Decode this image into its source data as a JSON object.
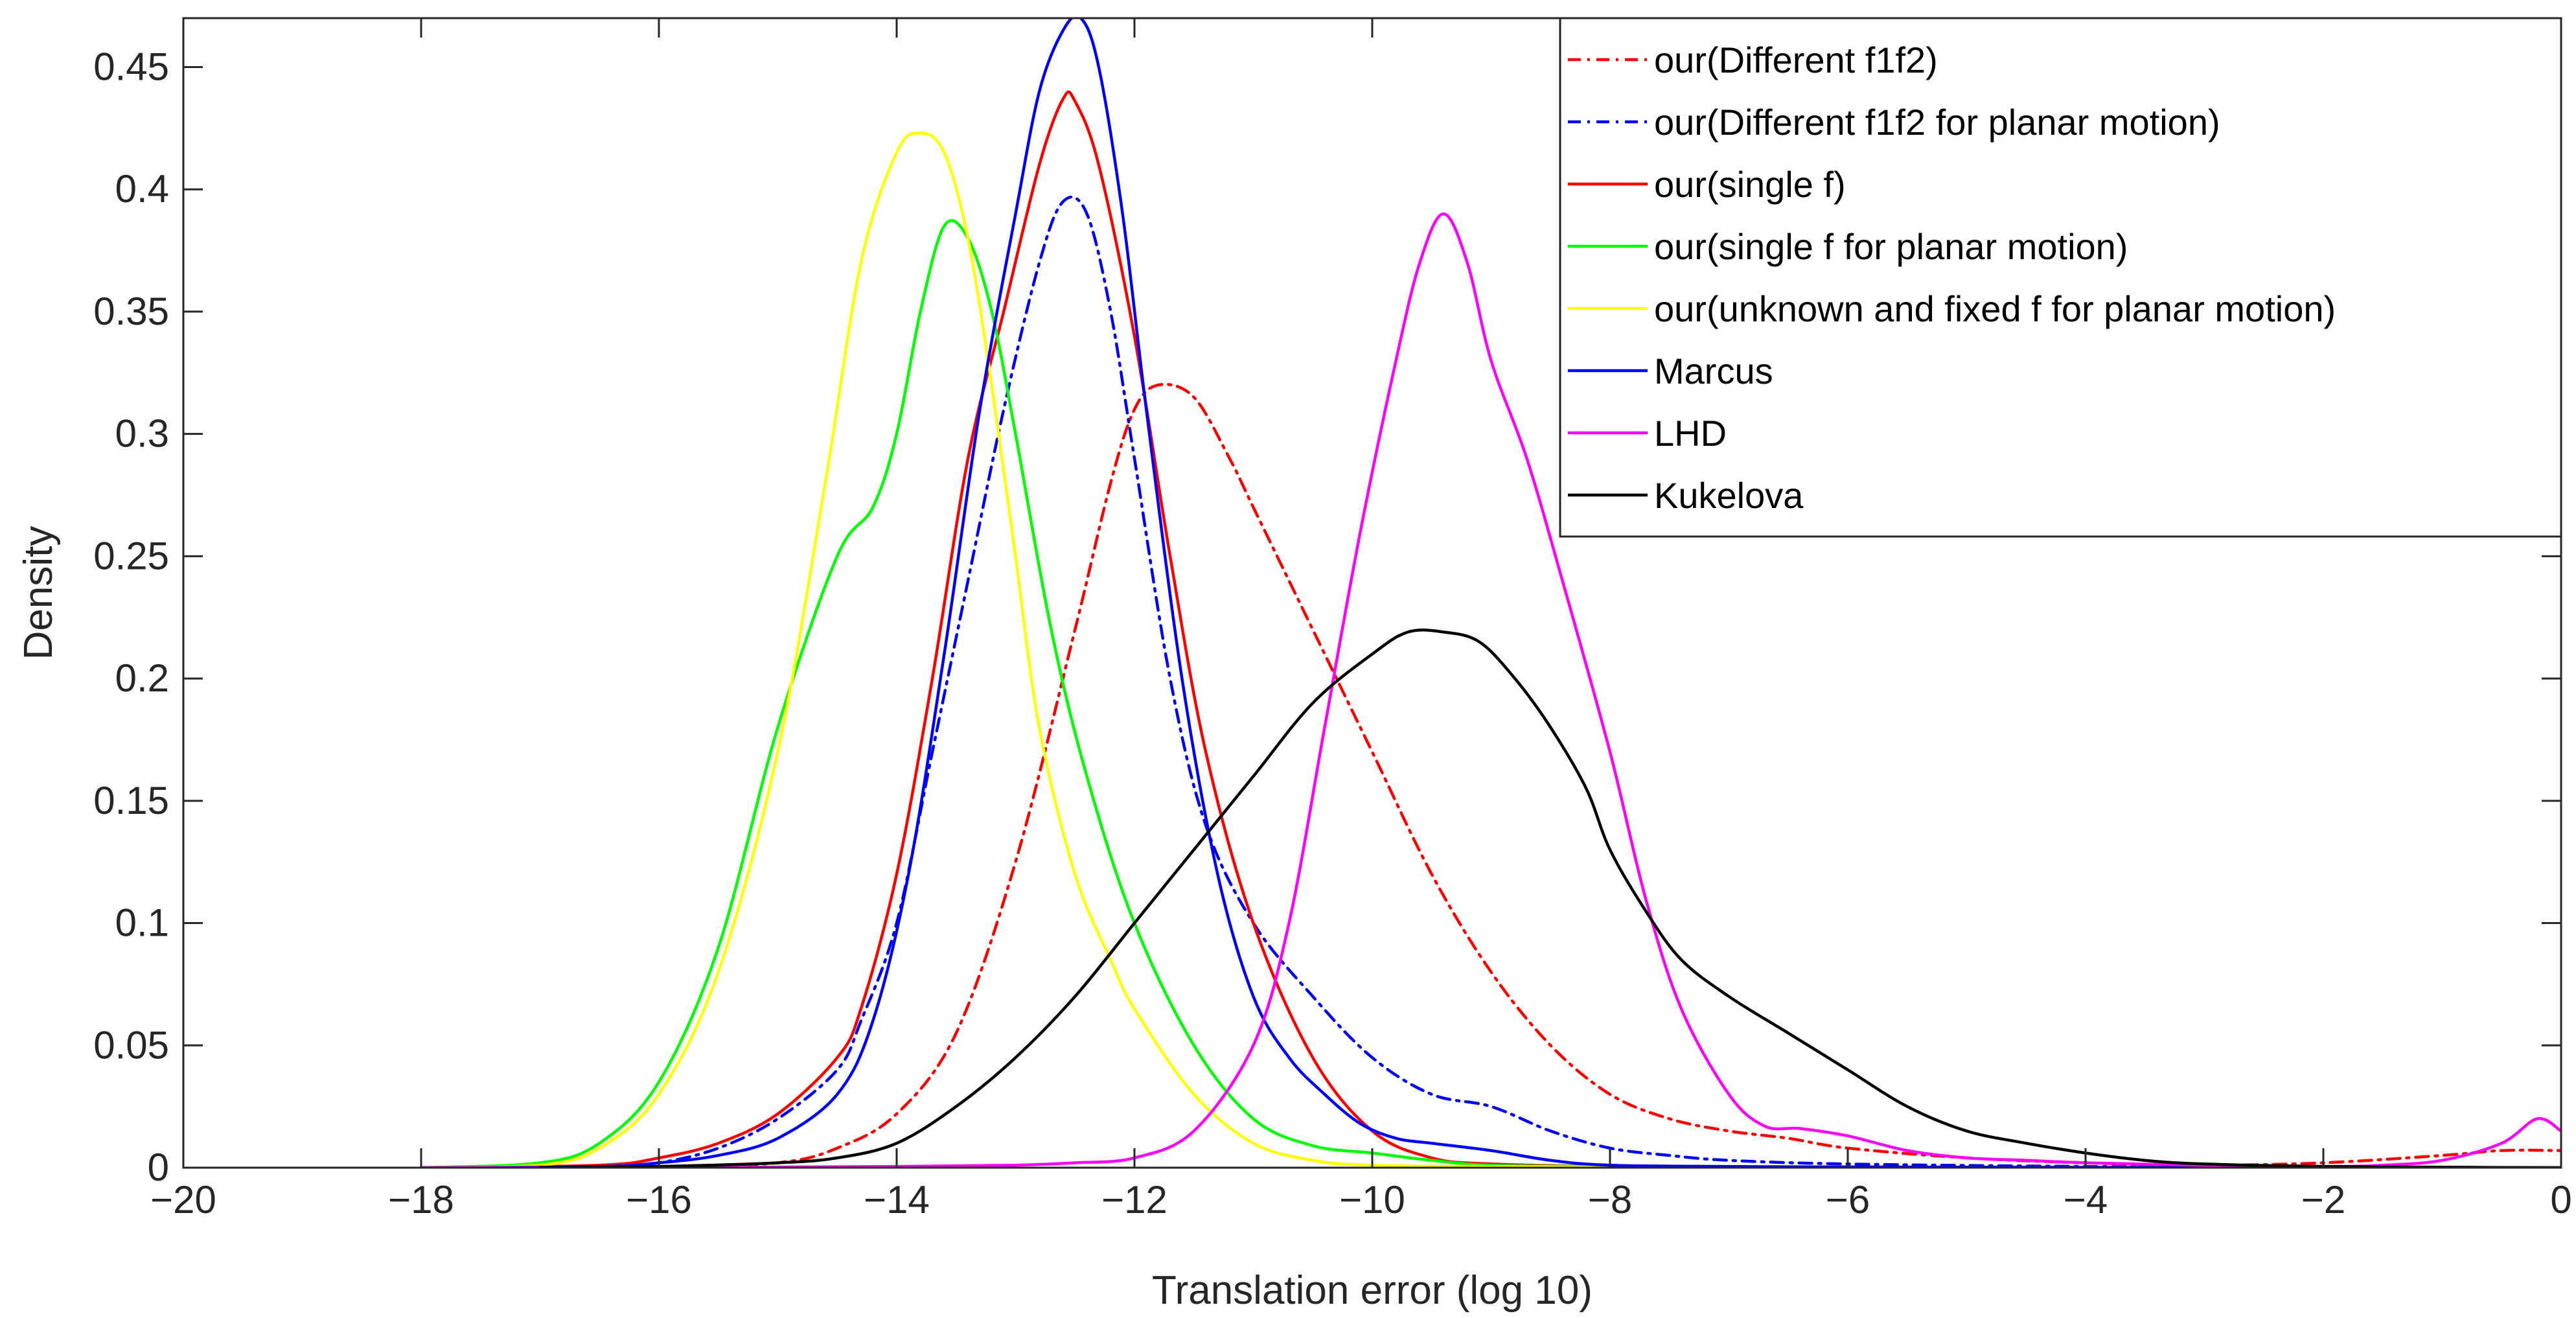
{
  "chart_data": {
    "type": "line",
    "title": "",
    "xlabel": "Translation error (log 10)",
    "ylabel": "Density",
    "xlim": [
      -20,
      0
    ],
    "ylim": [
      0,
      0.47
    ],
    "grid": false,
    "legend_position": "top-right",
    "x_ticks": [
      -20,
      -18,
      -16,
      -14,
      -12,
      -10,
      -8,
      -6,
      -4,
      -2,
      0
    ],
    "x_tick_labels": [
      "−20",
      "−18",
      "−16",
      "−14",
      "−12",
      "−10",
      "−8",
      "−6",
      "−4",
      "−2",
      "0"
    ],
    "y_ticks": [
      0,
      0.05,
      0.1,
      0.15,
      0.2,
      0.25,
      0.3,
      0.35,
      0.4,
      0.45
    ],
    "y_tick_labels": [
      "0",
      "0.05",
      "0.1",
      "0.15",
      "0.2",
      "0.25",
      "0.3",
      "0.35",
      "0.4",
      "0.45"
    ],
    "series": [
      {
        "name": "our(Different f1f2)",
        "color": "#ff0000",
        "style": "dashdot",
        "x": [
          -16,
          -15,
          -14.5,
          -14,
          -13.5,
          -13,
          -12.5,
          -12.2,
          -12,
          -11.8,
          -11.5,
          -11.2,
          -11,
          -10.5,
          -10,
          -9.5,
          -9,
          -8.5,
          -8,
          -7.5,
          -7,
          -6.5,
          -6,
          -5,
          -4,
          -3,
          -2,
          -1,
          -0.5,
          0
        ],
        "y": [
          0,
          0.002,
          0.008,
          0.022,
          0.055,
          0.125,
          0.22,
          0.28,
          0.31,
          0.32,
          0.315,
          0.29,
          0.27,
          0.22,
          0.17,
          0.12,
          0.08,
          0.05,
          0.03,
          0.02,
          0.015,
          0.012,
          0.008,
          0.004,
          0.002,
          0.001,
          0.002,
          0.005,
          0.007,
          0.007
        ]
      },
      {
        "name": "our(Different f1f2 for planar motion)",
        "color": "#0000ff",
        "style": "dashdot",
        "x": [
          -18,
          -16.5,
          -16,
          -15.5,
          -15,
          -14.5,
          -14.3,
          -14,
          -13.7,
          -13.4,
          -13.1,
          -12.8,
          -12.6,
          -12.4,
          -12.2,
          -12,
          -11.7,
          -11.4,
          -11,
          -10.5,
          -10,
          -9.5,
          -9,
          -8.5,
          -8,
          -7.5,
          -7,
          -6,
          -4,
          -2,
          0
        ],
        "y": [
          0,
          0.0005,
          0.002,
          0.008,
          0.02,
          0.04,
          0.06,
          0.1,
          0.17,
          0.24,
          0.31,
          0.37,
          0.395,
          0.39,
          0.35,
          0.29,
          0.2,
          0.14,
          0.1,
          0.07,
          0.045,
          0.03,
          0.025,
          0.015,
          0.008,
          0.005,
          0.003,
          0.0015,
          0.0005,
          0.0002,
          0
        ]
      },
      {
        "name": "our(single f)",
        "color": "#ff0000",
        "style": "solid",
        "x": [
          -18,
          -16.5,
          -16,
          -15.5,
          -15,
          -14.5,
          -14.3,
          -14,
          -13.7,
          -13.4,
          -13.1,
          -12.8,
          -12.6,
          -12.5,
          -12.3,
          -12,
          -11.7,
          -11.4,
          -11,
          -10.5,
          -10,
          -9.5,
          -9,
          -8,
          -6,
          -4,
          -2,
          0
        ],
        "y": [
          0,
          0.001,
          0.004,
          0.01,
          0.022,
          0.045,
          0.065,
          0.12,
          0.2,
          0.29,
          0.35,
          0.41,
          0.437,
          0.436,
          0.41,
          0.34,
          0.25,
          0.17,
          0.1,
          0.045,
          0.015,
          0.004,
          0.0015,
          0.0005,
          0.0002,
          0.0001,
          0.0001,
          0
        ]
      },
      {
        "name": "our(single f for planar motion)",
        "color": "#00ff00",
        "style": "solid",
        "x": [
          -18,
          -17,
          -16.5,
          -16,
          -15.5,
          -15,
          -14.5,
          -14.2,
          -14,
          -13.8,
          -13.6,
          -13.4,
          -13.2,
          -13,
          -12.7,
          -12.4,
          -12,
          -11.5,
          -11,
          -10.5,
          -10,
          -9.5,
          -9,
          -8,
          -6,
          -4,
          -2,
          0
        ],
        "y": [
          0,
          0.002,
          0.01,
          0.035,
          0.09,
          0.18,
          0.25,
          0.27,
          0.3,
          0.35,
          0.385,
          0.38,
          0.35,
          0.3,
          0.22,
          0.16,
          0.1,
          0.05,
          0.02,
          0.009,
          0.006,
          0.003,
          0.001,
          0.0005,
          0.0002,
          0.0001,
          0.0001,
          0
        ]
      },
      {
        "name": "our(unknown and fixed f for planar motion)",
        "color": "#ffff00",
        "style": "solid",
        "x": [
          -18,
          -17,
          -16.5,
          -16,
          -15.5,
          -15,
          -14.6,
          -14.3,
          -14,
          -13.8,
          -13.6,
          -13.4,
          -13.2,
          -13,
          -12.8,
          -12.5,
          -12.2,
          -12,
          -11.5,
          -11,
          -10.5,
          -10,
          -9,
          -8,
          -6,
          -4,
          -2,
          0
        ],
        "y": [
          0,
          0.001,
          0.008,
          0.03,
          0.08,
          0.17,
          0.28,
          0.37,
          0.415,
          0.423,
          0.415,
          0.38,
          0.32,
          0.25,
          0.18,
          0.12,
          0.085,
          0.065,
          0.03,
          0.01,
          0.003,
          0.001,
          0.0005,
          0.0002,
          0.0001,
          0.0001,
          0.0001,
          0
        ]
      },
      {
        "name": "Marcus",
        "color": "#0000ff",
        "style": "solid",
        "x": [
          -18,
          -16.5,
          -16,
          -15.5,
          -15,
          -14.5,
          -14.2,
          -13.9,
          -13.6,
          -13.3,
          -13,
          -12.8,
          -12.6,
          -12.45,
          -12.3,
          -12.1,
          -11.9,
          -11.6,
          -11.3,
          -11,
          -10.7,
          -10.4,
          -10.1,
          -9.8,
          -9.5,
          -9,
          -8.5,
          -8,
          -7,
          -6,
          -4,
          -2,
          0
        ],
        "y": [
          0,
          0.0005,
          0.002,
          0.005,
          0.012,
          0.03,
          0.06,
          0.12,
          0.21,
          0.31,
          0.39,
          0.44,
          0.465,
          0.47,
          0.45,
          0.39,
          0.31,
          0.2,
          0.12,
          0.07,
          0.045,
          0.03,
          0.018,
          0.012,
          0.01,
          0.007,
          0.003,
          0.001,
          0.0005,
          0.0003,
          0.0001,
          0.0001,
          0
        ]
      },
      {
        "name": "LHD",
        "color": "#ff00ff",
        "style": "solid",
        "x": [
          -18,
          -16,
          -14,
          -13,
          -12.5,
          -12,
          -11.5,
          -11,
          -10.7,
          -10.4,
          -10.1,
          -9.8,
          -9.6,
          -9.4,
          -9.2,
          -9,
          -8.7,
          -8.4,
          -8,
          -7.7,
          -7.4,
          -7,
          -6.7,
          -6.4,
          -6,
          -5.5,
          -5,
          -4.5,
          -4,
          -3,
          -2,
          -1.5,
          -1,
          -0.5,
          -0.2,
          0
        ],
        "y": [
          0,
          0,
          0.0005,
          0.001,
          0.002,
          0.004,
          0.015,
          0.05,
          0.1,
          0.18,
          0.26,
          0.33,
          0.37,
          0.39,
          0.37,
          0.33,
          0.29,
          0.24,
          0.17,
          0.11,
          0.065,
          0.03,
          0.017,
          0.016,
          0.013,
          0.007,
          0.004,
          0.003,
          0.002,
          0.001,
          0.0005,
          0.001,
          0.003,
          0.01,
          0.02,
          0.015
        ]
      },
      {
        "name": "Kukelova",
        "color": "#000000",
        "style": "solid",
        "x": [
          -17,
          -16,
          -15,
          -14.5,
          -14,
          -13.5,
          -13,
          -12.5,
          -12,
          -11.5,
          -11,
          -10.5,
          -10,
          -9.7,
          -9.4,
          -9.1,
          -8.8,
          -8.5,
          -8.2,
          -8,
          -7.7,
          -7.4,
          -7,
          -6.5,
          -6,
          -5.5,
          -5,
          -4.5,
          -4,
          -3.5,
          -3,
          -2,
          -1,
          0
        ],
        "y": [
          0,
          0.0005,
          0.002,
          0.004,
          0.01,
          0.025,
          0.045,
          0.07,
          0.1,
          0.13,
          0.16,
          0.19,
          0.21,
          0.219,
          0.219,
          0.215,
          0.2,
          0.18,
          0.155,
          0.13,
          0.105,
          0.085,
          0.07,
          0.055,
          0.04,
          0.025,
          0.015,
          0.01,
          0.006,
          0.003,
          0.0015,
          0.0005,
          0.0002,
          0
        ]
      }
    ]
  }
}
